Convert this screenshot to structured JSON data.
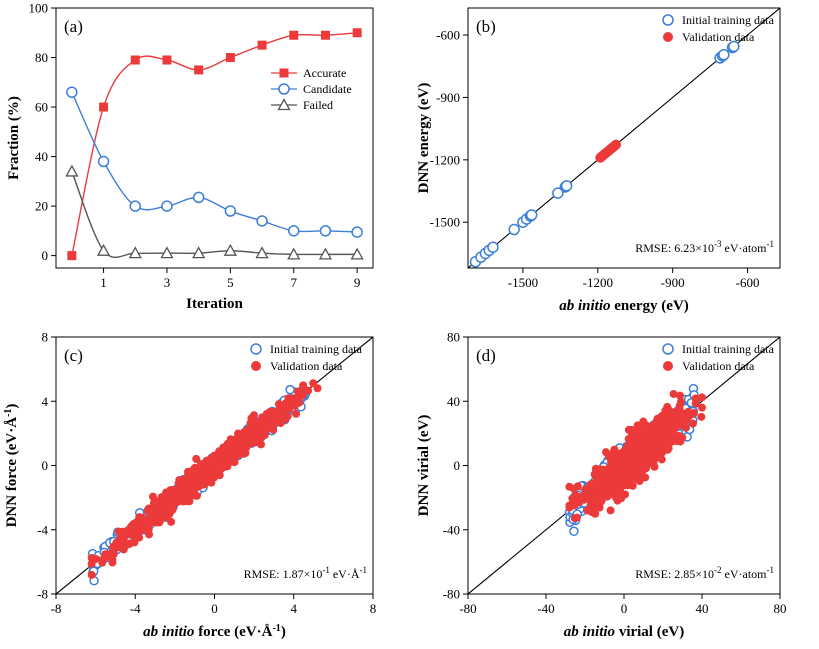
{
  "colors": {
    "accurate": "#ec3a3a",
    "candidate": "#3d7fd6",
    "failed": "#555555",
    "validation": "#ec3a3a",
    "training": "#3d7fd6"
  },
  "chart_data": [
    {
      "panel": "(a)",
      "type": "line",
      "xlabel": "Iteration",
      "ylabel": "Fraction (%)",
      "xlim": [
        -0.5,
        9.5
      ],
      "ylim": [
        -5,
        100
      ],
      "xticks": [
        1,
        3,
        5,
        7,
        9
      ],
      "yticks": [
        0,
        20,
        40,
        60,
        80,
        100
      ],
      "legend_position": "right",
      "x": [
        0,
        1,
        2,
        3,
        4,
        5,
        6,
        7,
        8,
        9
      ],
      "series": [
        {
          "name": "Accurate",
          "marker": "square",
          "values": [
            0,
            60,
            79,
            79,
            75,
            80,
            85,
            89,
            89,
            90
          ]
        },
        {
          "name": "Candidate",
          "marker": "circle",
          "values": [
            66,
            38,
            20,
            20,
            23.5,
            18,
            14,
            10,
            10,
            9.5
          ]
        },
        {
          "name": "Failed",
          "marker": "triangle",
          "values": [
            34,
            2,
            1,
            1,
            1,
            2,
            1,
            0.5,
            0.5,
            0.5
          ]
        }
      ]
    },
    {
      "panel": "(b)",
      "type": "scatter",
      "xlabel_italic": "ab initio",
      "xlabel_rest": " energy (eV)",
      "ylabel": "DNN energy (eV)",
      "xlim": [
        -1720,
        -470
      ],
      "ylim": [
        -1720,
        -470
      ],
      "xticks": [
        -1500,
        -1200,
        -900,
        -600
      ],
      "yticks": [
        -1500,
        -1200,
        -900,
        -600
      ],
      "rmse_prefix": "RMSE: 6.23×10",
      "rmse_exp": "-3",
      "rmse_unit": " eV·atom",
      "rmse_unit_exp": "-1",
      "legend_position": "top-right",
      "series": [
        {
          "name": "Initial training data",
          "marker": "open-circle",
          "points": [
            [
              -1690,
              -1690
            ],
            [
              -1668,
              -1668
            ],
            [
              -1650,
              -1650
            ],
            [
              -1635,
              -1635
            ],
            [
              -1620,
              -1620
            ],
            [
              -1535,
              -1535
            ],
            [
              -1500,
              -1500
            ],
            [
              -1485,
              -1485
            ],
            [
              -1470,
              -1470
            ],
            [
              -1465,
              -1465
            ],
            [
              -1360,
              -1360
            ],
            [
              -1330,
              -1330
            ],
            [
              -1325,
              -1325
            ],
            [
              -710,
              -710
            ],
            [
              -700,
              -700
            ],
            [
              -695,
              -695
            ],
            [
              -660,
              -660
            ],
            [
              -655,
              -655
            ]
          ]
        },
        {
          "name": "Validation data",
          "marker": "filled-circle",
          "points": [
            [
              -1190,
              -1190
            ],
            [
              -1182,
              -1182
            ],
            [
              -1175,
              -1175
            ],
            [
              -1168,
              -1168
            ],
            [
              -1160,
              -1160
            ],
            [
              -1153,
              -1153
            ],
            [
              -1146,
              -1146
            ],
            [
              -1140,
              -1140
            ],
            [
              -1133,
              -1133
            ],
            [
              -1127,
              -1127
            ],
            [
              -1186,
              -1186
            ],
            [
              -1171,
              -1171
            ],
            [
              -1157,
              -1157
            ],
            [
              -1143,
              -1143
            ]
          ]
        }
      ]
    },
    {
      "panel": "(c)",
      "type": "scatter",
      "xlabel_italic": "ab initio",
      "xlabel_rest": " force (eV·Å",
      "xlabel_exp": "-1",
      "xlabel_close": ")",
      "ylabel": "DNN force (eV·Å",
      "ylabel_exp": "-1",
      "ylabel_close": ")",
      "xlim": [
        -8,
        8
      ],
      "ylim": [
        -8,
        8
      ],
      "xticks": [
        -8,
        -4,
        0,
        4,
        8
      ],
      "yticks": [
        -8,
        -4,
        0,
        4,
        8
      ],
      "rmse_prefix": "RMSE: 1.87×10",
      "rmse_exp": "-1",
      "rmse_unit": " eV·Å",
      "rmse_unit_exp": "-1",
      "legend_position": "top-right",
      "cloud": {
        "x_range": [
          -6.2,
          5.2
        ],
        "spread": 0.35,
        "n_validation": 900,
        "n_training": 260
      },
      "series": [
        {
          "name": "Initial training data",
          "marker": "open-circle"
        },
        {
          "name": "Validation data",
          "marker": "filled-circle"
        }
      ]
    },
    {
      "panel": "(d)",
      "type": "scatter",
      "xlabel_italic": "ab initio",
      "xlabel_rest": " virial (eV)",
      "ylabel": "DNN virial (eV)",
      "xlim": [
        -80,
        80
      ],
      "ylim": [
        -80,
        80
      ],
      "xticks": [
        -80,
        -40,
        0,
        40,
        80
      ],
      "yticks": [
        -80,
        -40,
        0,
        40,
        80
      ],
      "rmse_prefix": "RMSE: 2.85×10",
      "rmse_exp": "-2",
      "rmse_unit": " eV·atom",
      "rmse_unit_exp": "-1",
      "legend_position": "top-right",
      "cloud": {
        "x_range": [
          -28,
          40
        ],
        "spread": 7,
        "n_validation": 800,
        "n_training": 220
      },
      "series": [
        {
          "name": "Initial training data",
          "marker": "open-circle"
        },
        {
          "name": "Validation data",
          "marker": "filled-circle"
        }
      ]
    }
  ]
}
